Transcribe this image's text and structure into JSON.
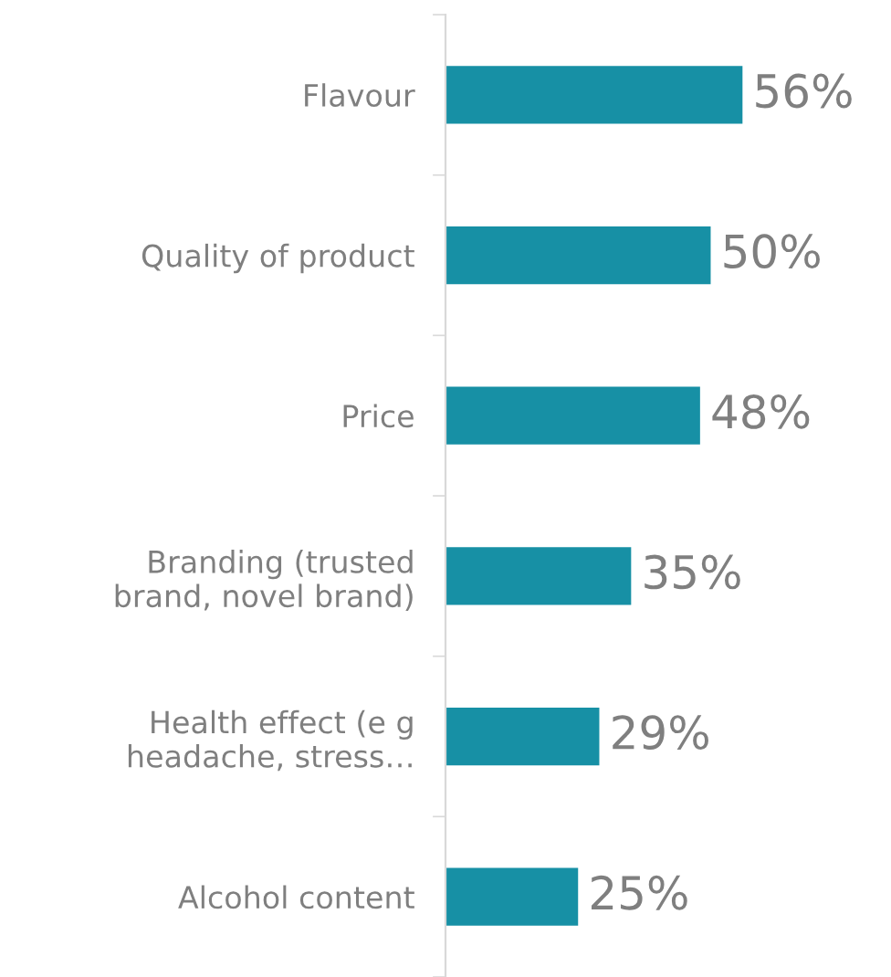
{
  "chart_data": {
    "type": "bar",
    "orientation": "horizontal",
    "categories": [
      "Flavour",
      "Quality of product",
      "Price",
      "Branding (trusted\nbrand, novel brand)",
      "Health effect (e g\nheadache, stress…",
      "Alcohol content"
    ],
    "values": [
      56,
      50,
      48,
      35,
      29,
      25
    ],
    "value_labels": [
      "56%",
      "50%",
      "48%",
      "35%",
      "29%",
      "25%"
    ],
    "color": "#1790a5",
    "grid": false,
    "legend": false
  }
}
